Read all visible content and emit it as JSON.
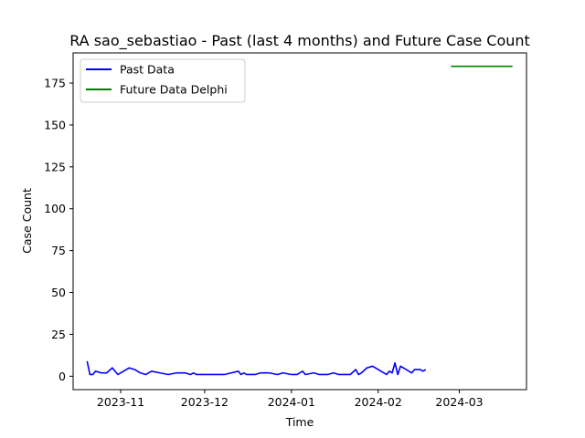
{
  "chart_data": {
    "type": "line",
    "title": "RA sao_sebastiao - Past (last 4 months) and Future Case Count",
    "xlabel": "Time",
    "ylabel": "Case Count",
    "x_type": "date",
    "xlim": [
      "2023-10-15",
      "2024-03-25"
    ],
    "ylim": [
      -8,
      193
    ],
    "x_ticks": [
      {
        "value": "2023-11-01",
        "label": "2023-11"
      },
      {
        "value": "2023-12-01",
        "label": "2023-12"
      },
      {
        "value": "2024-01-01",
        "label": "2024-01"
      },
      {
        "value": "2024-02-01",
        "label": "2024-02"
      },
      {
        "value": "2024-03-01",
        "label": "2024-03"
      }
    ],
    "y_ticks": [
      0,
      25,
      50,
      75,
      100,
      125,
      150,
      175
    ],
    "grid": false,
    "legend_position": "top-left",
    "series": [
      {
        "name": "Past Data",
        "color": "#0000ff",
        "points": [
          [
            "2023-10-20",
            9
          ],
          [
            "2023-10-21",
            1
          ],
          [
            "2023-10-22",
            1
          ],
          [
            "2023-10-23",
            3
          ],
          [
            "2023-10-25",
            2
          ],
          [
            "2023-10-27",
            2
          ],
          [
            "2023-10-29",
            5
          ],
          [
            "2023-10-31",
            1
          ],
          [
            "2023-11-02",
            3
          ],
          [
            "2023-11-04",
            5
          ],
          [
            "2023-11-06",
            4
          ],
          [
            "2023-11-08",
            2
          ],
          [
            "2023-11-10",
            1
          ],
          [
            "2023-11-12",
            3
          ],
          [
            "2023-11-15",
            2
          ],
          [
            "2023-11-18",
            1
          ],
          [
            "2023-11-21",
            2
          ],
          [
            "2023-11-24",
            2
          ],
          [
            "2023-11-26",
            1
          ],
          [
            "2023-11-27",
            2
          ],
          [
            "2023-11-28",
            1
          ],
          [
            "2023-12-03",
            1
          ],
          [
            "2023-12-08",
            1
          ],
          [
            "2023-12-13",
            3
          ],
          [
            "2023-12-14",
            1
          ],
          [
            "2023-12-15",
            2
          ],
          [
            "2023-12-16",
            1
          ],
          [
            "2023-12-19",
            1
          ],
          [
            "2023-12-21",
            2
          ],
          [
            "2023-12-24",
            2
          ],
          [
            "2023-12-27",
            1
          ],
          [
            "2023-12-29",
            2
          ],
          [
            "2024-01-01",
            1
          ],
          [
            "2024-01-03",
            1
          ],
          [
            "2024-01-05",
            3
          ],
          [
            "2024-01-06",
            1
          ],
          [
            "2024-01-09",
            2
          ],
          [
            "2024-01-11",
            1
          ],
          [
            "2024-01-14",
            1
          ],
          [
            "2024-01-16",
            2
          ],
          [
            "2024-01-18",
            1
          ],
          [
            "2024-01-22",
            1
          ],
          [
            "2024-01-24",
            4
          ],
          [
            "2024-01-25",
            1
          ],
          [
            "2024-01-26",
            2
          ],
          [
            "2024-01-28",
            5
          ],
          [
            "2024-01-30",
            6
          ],
          [
            "2024-02-01",
            4
          ],
          [
            "2024-02-02",
            3
          ],
          [
            "2024-02-04",
            1
          ],
          [
            "2024-02-05",
            3
          ],
          [
            "2024-02-06",
            2
          ],
          [
            "2024-02-07",
            8
          ],
          [
            "2024-02-08",
            1
          ],
          [
            "2024-02-09",
            6
          ],
          [
            "2024-02-11",
            4
          ],
          [
            "2024-02-12",
            3
          ],
          [
            "2024-02-13",
            2
          ],
          [
            "2024-02-14",
            4
          ],
          [
            "2024-02-16",
            4
          ],
          [
            "2024-02-17",
            3
          ],
          [
            "2024-02-18",
            4
          ]
        ]
      },
      {
        "name": "Future Data Delphi",
        "color": "#008000",
        "points": [
          [
            "2024-02-27",
            185
          ],
          [
            "2024-03-20",
            185
          ]
        ]
      }
    ]
  }
}
